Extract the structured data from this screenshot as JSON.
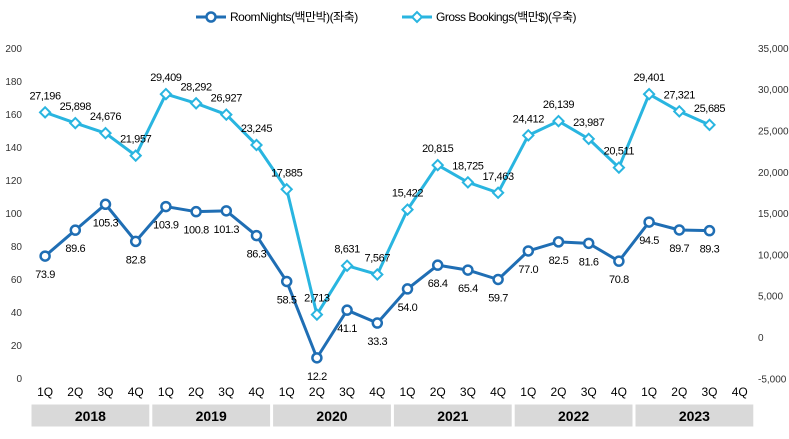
{
  "chart_data": {
    "type": "line",
    "categories": [
      "1Q",
      "2Q",
      "3Q",
      "4Q",
      "1Q",
      "2Q",
      "3Q",
      "4Q",
      "1Q",
      "2Q",
      "3Q",
      "4Q",
      "1Q",
      "2Q",
      "3Q",
      "4Q",
      "1Q",
      "2Q",
      "3Q",
      "4Q",
      "1Q",
      "2Q",
      "3Q",
      "4Q"
    ],
    "years": [
      "2018",
      "2019",
      "2020",
      "2021",
      "2022",
      "2023"
    ],
    "series": [
      {
        "name": "RoomNights(백만박)(좌축)",
        "axis": "left",
        "color": "#1f6eb4",
        "marker": "circle",
        "values": [
          73.9,
          89.6,
          105.3,
          82.8,
          103.9,
          100.8,
          101.3,
          86.3,
          58.5,
          12.2,
          41.1,
          33.3,
          54.0,
          68.4,
          65.4,
          59.7,
          77.0,
          82.5,
          81.6,
          70.8,
          94.5,
          89.7,
          89.3,
          null
        ],
        "labels": [
          "73.9",
          "89.6",
          "105.3",
          "82.8",
          "103.9",
          "100.8",
          "101.3",
          "86.3",
          "58.5",
          "12.2",
          "41.1",
          "33.3",
          "54.0",
          "68.4",
          "65.4",
          "59.7",
          "77.0",
          "82.5",
          "81.6",
          "70.8",
          "94.5",
          "89.7",
          "89.3",
          ""
        ]
      },
      {
        "name": "Gross Bookings(백만$)(우축)",
        "axis": "right",
        "color": "#29b5e0",
        "marker": "diamond",
        "values": [
          27196,
          25898,
          24676,
          21957,
          29409,
          28292,
          26927,
          23245,
          17885,
          2713,
          8631,
          7567,
          15422,
          20815,
          18725,
          17463,
          24412,
          26139,
          23987,
          20511,
          29401,
          27321,
          25685,
          null
        ],
        "labels": [
          "27,196",
          "25,898",
          "24,676",
          "21,957",
          "29,409",
          "28,292",
          "26,927",
          "23,245",
          "17,885",
          "2,713",
          "8,631",
          "7,567",
          "15,422",
          "20,815",
          "18,725",
          "17,463",
          "24,412",
          "26,139",
          "23,987",
          "20,511",
          "29,401",
          "27,321",
          "25,685",
          ""
        ]
      }
    ],
    "left_axis": {
      "ylim": [
        0,
        200
      ],
      "ticks": [
        "0",
        "20",
        "40",
        "60",
        "80",
        "100",
        "120",
        "140",
        "160",
        "180",
        "200"
      ]
    },
    "right_axis": {
      "ylim": [
        -5000,
        35000
      ],
      "ticks": [
        "-5,000",
        "0",
        "5,000",
        "10,000",
        "15,000",
        "20,000",
        "25,000",
        "30,000",
        "35,000"
      ]
    },
    "legend_position": "top",
    "grid": false
  }
}
